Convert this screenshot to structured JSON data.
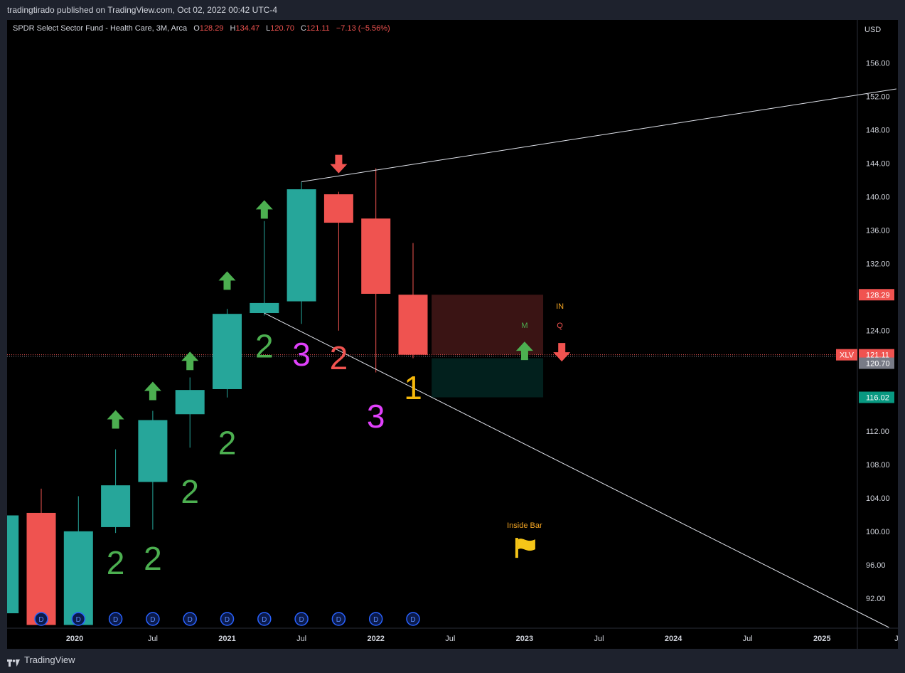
{
  "header": {
    "publisher_line": "tradingtirado published on TradingView.com, Oct 02, 2022 00:42 UTC-4"
  },
  "legend": {
    "symbol": "SPDR Select Sector Fund - Health Care, 3M, Arca",
    "o_label": "O",
    "o": "128.29",
    "h_label": "H",
    "h": "134.47",
    "l_label": "L",
    "l": "120.70",
    "c_label": "C",
    "c": "121.11",
    "change": "−7.13 (−5.56%)"
  },
  "footer": {
    "brand": "TradingView"
  },
  "colors": {
    "up": "#26a69a",
    "down": "#ef5350",
    "arrow_up": "#4caf50",
    "arrow_down": "#f05350",
    "two": "#4caf50",
    "three": "#e040fb",
    "two_red": "#f05350",
    "one": "#f5b80b",
    "flag": "#f5c518"
  },
  "chart_data": {
    "type": "candlestick",
    "currency": "USD",
    "y_ticks": [
      "156.00",
      "152.00",
      "148.00",
      "144.00",
      "140.00",
      "136.00",
      "132.00",
      "128.00",
      "124.00",
      "120.00",
      "116.00",
      "112.00",
      "108.00",
      "104.00",
      "100.00",
      "96.00",
      "92.00"
    ],
    "ylim": [
      88.5,
      160.3
    ],
    "x_ticks": [
      {
        "label": "2020",
        "i": 0.9
      },
      {
        "label": "Jul",
        "i": 3
      },
      {
        "label": "2021",
        "i": 5
      },
      {
        "label": "Jul",
        "i": 7
      },
      {
        "label": "2022",
        "i": 9
      },
      {
        "label": "Jul",
        "i": 11
      },
      {
        "label": "2023",
        "i": 13
      },
      {
        "label": "Jul",
        "i": 15
      },
      {
        "label": "2024",
        "i": 17
      },
      {
        "label": "Jul",
        "i": 19
      },
      {
        "label": "2025",
        "i": 21
      },
      {
        "label": "J",
        "i": 23
      }
    ],
    "candles": [
      {
        "i": -1,
        "o": 90.2,
        "h": 101.9,
        "l": 90.2,
        "c": 101.9
      },
      {
        "i": 0,
        "o": 102.2,
        "h": 105.1,
        "l": 88.8,
        "c": 88.8
      },
      {
        "i": 1,
        "o": 88.8,
        "h": 104.2,
        "l": 88.8,
        "c": 100.0
      },
      {
        "i": 2,
        "o": 100.5,
        "h": 109.8,
        "l": 99.8,
        "c": 105.5
      },
      {
        "i": 3,
        "o": 105.9,
        "h": 114.4,
        "l": 100.2,
        "c": 113.3
      },
      {
        "i": 4,
        "o": 114.0,
        "h": 118.4,
        "l": 110.0,
        "c": 116.9
      },
      {
        "i": 5,
        "o": 117.0,
        "h": 126.6,
        "l": 116.0,
        "c": 126.0
      },
      {
        "i": 6,
        "o": 126.1,
        "h": 137.1,
        "l": 125.8,
        "c": 127.3
      },
      {
        "i": 7,
        "o": 127.5,
        "h": 141.8,
        "l": 124.8,
        "c": 140.9
      },
      {
        "i": 8,
        "o": 140.3,
        "h": 140.6,
        "l": 124.0,
        "c": 136.9
      },
      {
        "i": 9,
        "o": 137.4,
        "h": 143.4,
        "l": 119.0,
        "c": 128.4
      },
      {
        "i": 10,
        "o": 128.29,
        "h": 134.47,
        "l": 120.7,
        "c": 121.11
      }
    ],
    "strat_labels": [
      {
        "text": "2",
        "i": 2,
        "y": 94.9,
        "color": "two"
      },
      {
        "text": "2",
        "i": 3,
        "y": 95.4,
        "color": "two"
      },
      {
        "text": "2",
        "i": 4,
        "y": 103.4,
        "color": "two"
      },
      {
        "text": "2",
        "i": 5,
        "y": 109.2,
        "color": "two"
      },
      {
        "text": "2",
        "i": 6,
        "y": 120.8,
        "color": "two"
      },
      {
        "text": "3",
        "i": 7,
        "y": 119.8,
        "color": "three"
      },
      {
        "text": "2",
        "i": 8,
        "y": 119.4,
        "color": "two_red"
      },
      {
        "text": "3",
        "i": 9,
        "y": 112.4,
        "color": "three"
      },
      {
        "text": "1",
        "i": 10,
        "y": 115.8,
        "color": "one"
      }
    ],
    "arrows": [
      {
        "dir": "up",
        "i": 2,
        "y": 113.3
      },
      {
        "dir": "up",
        "i": 3,
        "y": 116.7
      },
      {
        "dir": "up",
        "i": 4,
        "y": 120.3
      },
      {
        "dir": "up",
        "i": 5,
        "y": 129.9
      },
      {
        "dir": "up",
        "i": 6,
        "y": 138.4
      },
      {
        "dir": "down",
        "i": 8,
        "y": 144.0
      },
      {
        "dir": "up",
        "i": 13,
        "y": 121.5
      },
      {
        "dir": "down",
        "i": 14,
        "y": 121.5
      }
    ],
    "dividend_markers": [
      0,
      1,
      2,
      3,
      4,
      5,
      6,
      7,
      8,
      9,
      10
    ],
    "boxes": [
      {
        "i0": 10.5,
        "i1": 13.5,
        "top": 128.29,
        "bottom": 121.11,
        "fill": "#3a1414"
      },
      {
        "i0": 10.5,
        "i1": 13.5,
        "top": 120.7,
        "bottom": 116.02,
        "fill": "#02201d"
      }
    ],
    "trendlines": [
      {
        "i0": 7,
        "y0": 141.8,
        "i1": 23,
        "y1": 152.9
      },
      {
        "i0": 6,
        "y0": 126.1,
        "i1": 22.8,
        "y1": 88.5
      }
    ],
    "box_notes": [
      {
        "text": "IN",
        "i": 13.95,
        "y": 126.6,
        "color": "#f5a623"
      },
      {
        "text": "M",
        "i": 13,
        "y": 124.3,
        "color": "#4caf50"
      },
      {
        "text": "Q",
        "i": 13.95,
        "y": 124.3,
        "color": "#f05350"
      }
    ],
    "inside_bar": {
      "text": "Inside Bar",
      "i": 13,
      "y": 100.4
    },
    "price_labels": [
      {
        "value": "128.29",
        "y": 128.29,
        "bg": "#f05350",
        "fg": "#ffffff"
      },
      {
        "value": "121.11",
        "y": 121.11,
        "bg": "#f05350",
        "fg": "#ffffff",
        "tag": "XLV"
      },
      {
        "value": "120.70",
        "y": 120.1,
        "bg": "#787b86",
        "fg": "#ffffff"
      },
      {
        "value": "116.02",
        "y": 116.02,
        "bg": "#089981",
        "fg": "#ffffff"
      }
    ],
    "dotted_lines": [
      121.11,
      120.9
    ]
  }
}
